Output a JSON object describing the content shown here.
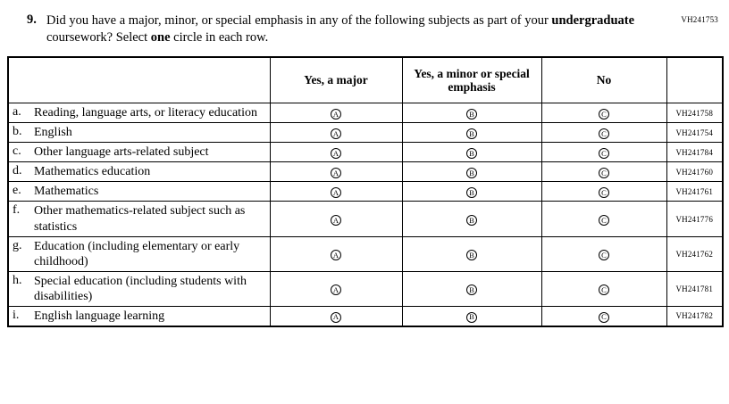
{
  "page_code": "VH241753",
  "question": {
    "number": "9.",
    "part1": "Did you have a major, minor, or special emphasis in any of the following subjects as part of your ",
    "bold1": "undergraduate",
    "part2": " coursework? Select ",
    "bold2": "one",
    "part3": " circle in each row."
  },
  "table": {
    "headers": {
      "major": "Yes, a major",
      "minor": "Yes, a minor or special emphasis",
      "no": "No"
    },
    "option_letters": {
      "major": "A",
      "minor": "B",
      "no": "C"
    },
    "rows": [
      {
        "letter": "a.",
        "label": "Reading, language arts, or literacy education",
        "code": "VH241758"
      },
      {
        "letter": "b.",
        "label": "English",
        "code": "VH241754"
      },
      {
        "letter": "c.",
        "label": "Other language arts-related subject",
        "code": "VH241784"
      },
      {
        "letter": "d.",
        "label": "Mathematics education",
        "code": "VH241760"
      },
      {
        "letter": "e.",
        "label": "Mathematics",
        "code": "VH241761"
      },
      {
        "letter": "f.",
        "label": "Other mathematics-related subject such as statistics",
        "code": "VH241776"
      },
      {
        "letter": "g.",
        "label": "Education (including elementary or early childhood)",
        "code": "VH241762"
      },
      {
        "letter": "h.",
        "label": "Special education (including students with disabilities)",
        "code": "VH241781"
      },
      {
        "letter": "i.",
        "label": "English language learning",
        "code": "VH241782"
      }
    ]
  }
}
